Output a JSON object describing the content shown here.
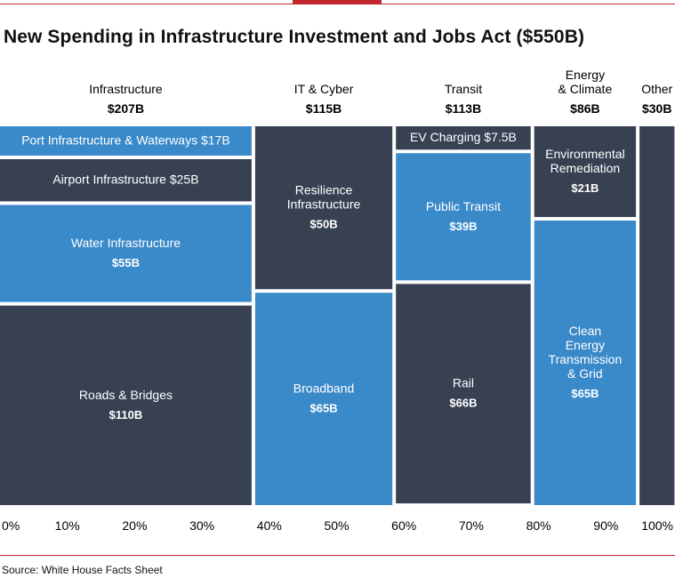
{
  "colors": {
    "accent": "#c0262c",
    "dark": "#374152",
    "blue": "#3a89c9",
    "text_light": "#ffffff"
  },
  "source": "Source: White House Facts Sheet",
  "chart_data": {
    "type": "mekko",
    "title": "New Spending in Infrastructure Investment and Jobs Act ($550B)",
    "total": 550,
    "x_ticks": [
      "0%",
      "10%",
      "20%",
      "30%",
      "40%",
      "50%",
      "60%",
      "70%",
      "80%",
      "90%",
      "100%"
    ],
    "x_range": [
      0,
      100
    ],
    "groups": [
      {
        "name": [
          "Infrastructure"
        ],
        "total_label": "$207B",
        "value": 207,
        "segments": [
          {
            "label": [
              "Port Infrastructure & Waterways $17B"
            ],
            "value": 17,
            "color": "blue"
          },
          {
            "label": [
              "Airport Infrastructure $25B"
            ],
            "value": 25,
            "color": "dark"
          },
          {
            "label": [
              "Water Infrastructure"
            ],
            "value_label": "$55B",
            "value": 55,
            "color": "blue"
          },
          {
            "label": [
              "Roads & Bridges"
            ],
            "value_label": "$110B",
            "value": 110,
            "color": "dark"
          }
        ]
      },
      {
        "name": [
          "IT & Cyber"
        ],
        "total_label": "$115B",
        "value": 115,
        "segments": [
          {
            "label": [
              "Resilience",
              "Infrastructure"
            ],
            "value_label": "$50B",
            "value": 50,
            "color": "dark"
          },
          {
            "label": [
              "Broadband"
            ],
            "value_label": "$65B",
            "value": 65,
            "color": "blue"
          }
        ]
      },
      {
        "name": [
          "Transit"
        ],
        "total_label": "$113B",
        "value": 113,
        "segments": [
          {
            "label": [
              "EV Charging $7.5B"
            ],
            "value": 7.5,
            "color": "dark"
          },
          {
            "label": [
              "Public Transit"
            ],
            "value_label": "$39B",
            "value": 39,
            "color": "blue"
          },
          {
            "label": [
              "Rail"
            ],
            "value_label": "$66B",
            "value": 66,
            "color": "dark"
          }
        ]
      },
      {
        "name": [
          "Energy",
          "& Climate"
        ],
        "total_label": "$86B",
        "value": 86,
        "segments": [
          {
            "label": [
              "Environmental",
              "Remediation"
            ],
            "value_label": "$21B",
            "value": 21,
            "color": "dark"
          },
          {
            "label": [
              "Clean",
              "Energy",
              "Transmission",
              "& Grid"
            ],
            "value_label": "$65B",
            "value": 65,
            "color": "blue"
          }
        ]
      },
      {
        "name": [
          "Other"
        ],
        "total_label": "$30B",
        "value": 30,
        "segments": [
          {
            "label": [],
            "value": 30,
            "color": "dark"
          }
        ]
      }
    ]
  }
}
